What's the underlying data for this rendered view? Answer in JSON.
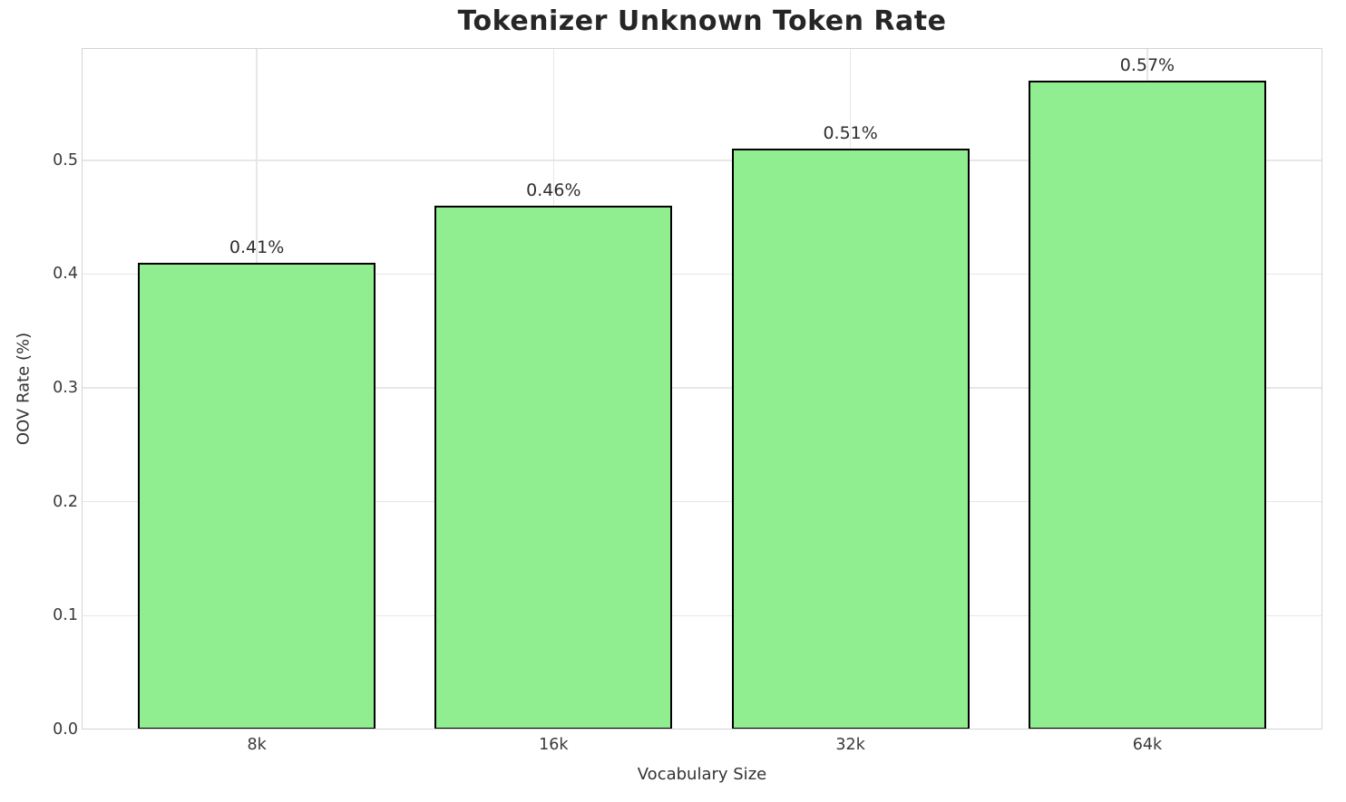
{
  "chart_data": {
    "type": "bar",
    "title": "Tokenizer Unknown Token Rate",
    "xlabel": "Vocabulary Size",
    "ylabel": "OOV Rate (%)",
    "categories": [
      "8k",
      "16k",
      "32k",
      "64k"
    ],
    "values": [
      0.41,
      0.46,
      0.51,
      0.57
    ],
    "bar_labels": [
      "0.41%",
      "0.46%",
      "0.51%",
      "0.57%"
    ],
    "ylim": [
      0,
      0.5985
    ],
    "yticks": [
      0.0,
      0.1,
      0.2,
      0.3,
      0.4,
      0.5
    ],
    "ytick_labels": [
      "0.0",
      "0.1",
      "0.2",
      "0.3",
      "0.4",
      "0.5"
    ],
    "grid": true,
    "legend": "none",
    "colors": {
      "bar_fill": "#90ee90",
      "bar_edge": "#000000",
      "grid": "#e7e7e7",
      "spine": "#d4d4d4",
      "title_text": "#262626",
      "tick_text": "#3a3a3a",
      "axis_label_text": "#333333",
      "value_label_text": "#2e2e2e",
      "background": "#ffffff"
    }
  }
}
